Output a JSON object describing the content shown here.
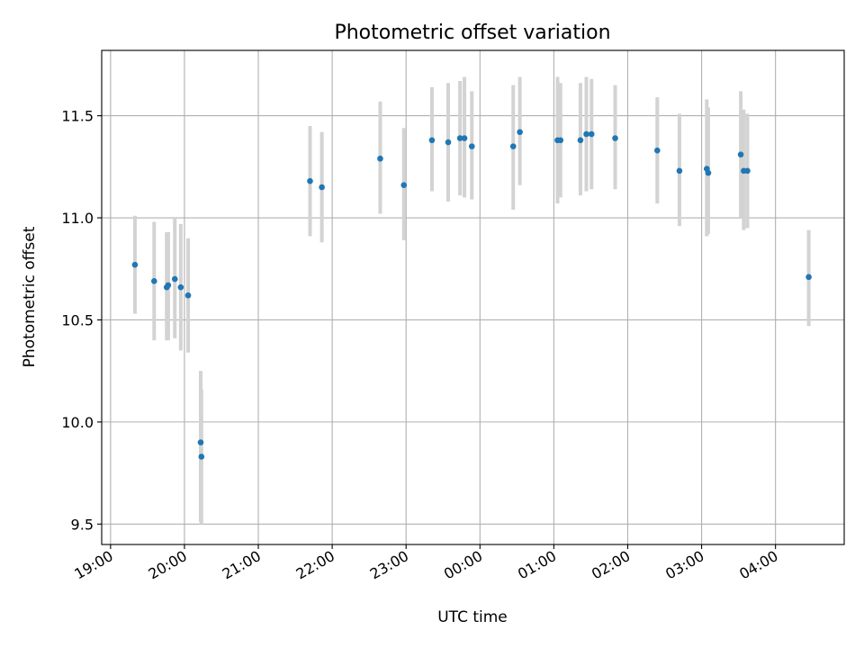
{
  "chart_data": {
    "type": "scatter",
    "title": "Photometric offset variation",
    "xlabel": "UTC time",
    "ylabel": "Photometric offset",
    "x_unit": "hours",
    "xlim": [
      18.88,
      28.93
    ],
    "ylim": [
      9.4,
      11.82
    ],
    "x_ticks": [
      {
        "value": 19,
        "label": "19:00"
      },
      {
        "value": 20,
        "label": "20:00"
      },
      {
        "value": 21,
        "label": "21:00"
      },
      {
        "value": 22,
        "label": "22:00"
      },
      {
        "value": 23,
        "label": "23:00"
      },
      {
        "value": 24,
        "label": "00:00"
      },
      {
        "value": 25,
        "label": "01:00"
      },
      {
        "value": 26,
        "label": "02:00"
      },
      {
        "value": 27,
        "label": "03:00"
      },
      {
        "value": 28,
        "label": "04:00"
      }
    ],
    "y_ticks": [
      {
        "value": 9.5,
        "label": "9.5"
      },
      {
        "value": 10.0,
        "label": "10.0"
      },
      {
        "value": 10.5,
        "label": "10.5"
      },
      {
        "value": 11.0,
        "label": "11.0"
      },
      {
        "value": 11.5,
        "label": "11.5"
      }
    ],
    "grid": true,
    "marker_color": "#1f77b4",
    "errorbar_color": "#d3d3d3",
    "points": [
      {
        "x": 19.33,
        "y": 10.77,
        "ylo": 10.53,
        "yhi": 11.01
      },
      {
        "x": 19.59,
        "y": 10.69,
        "ylo": 10.4,
        "yhi": 10.98
      },
      {
        "x": 19.76,
        "y": 10.66,
        "ylo": 10.4,
        "yhi": 10.93
      },
      {
        "x": 19.78,
        "y": 10.67,
        "ylo": 10.4,
        "yhi": 10.93
      },
      {
        "x": 19.87,
        "y": 10.7,
        "ylo": 10.41,
        "yhi": 11.0
      },
      {
        "x": 19.95,
        "y": 10.66,
        "ylo": 10.35,
        "yhi": 10.97
      },
      {
        "x": 20.05,
        "y": 10.62,
        "ylo": 10.34,
        "yhi": 10.9
      },
      {
        "x": 20.22,
        "y": 9.9,
        "ylo": 9.51,
        "yhi": 10.25
      },
      {
        "x": 20.23,
        "y": 9.83,
        "ylo": 9.5,
        "yhi": 10.16
      },
      {
        "x": 21.7,
        "y": 11.18,
        "ylo": 10.91,
        "yhi": 11.45
      },
      {
        "x": 21.86,
        "y": 11.15,
        "ylo": 10.88,
        "yhi": 11.42
      },
      {
        "x": 22.65,
        "y": 11.29,
        "ylo": 11.02,
        "yhi": 11.57
      },
      {
        "x": 22.97,
        "y": 11.16,
        "ylo": 10.89,
        "yhi": 11.44
      },
      {
        "x": 23.35,
        "y": 11.38,
        "ylo": 11.13,
        "yhi": 11.64
      },
      {
        "x": 23.57,
        "y": 11.37,
        "ylo": 11.08,
        "yhi": 11.66
      },
      {
        "x": 23.73,
        "y": 11.39,
        "ylo": 11.11,
        "yhi": 11.67
      },
      {
        "x": 23.79,
        "y": 11.39,
        "ylo": 11.1,
        "yhi": 11.69
      },
      {
        "x": 23.89,
        "y": 11.35,
        "ylo": 11.09,
        "yhi": 11.62
      },
      {
        "x": 24.45,
        "y": 11.35,
        "ylo": 11.04,
        "yhi": 11.65
      },
      {
        "x": 24.54,
        "y": 11.42,
        "ylo": 11.16,
        "yhi": 11.69
      },
      {
        "x": 25.05,
        "y": 11.38,
        "ylo": 11.07,
        "yhi": 11.69
      },
      {
        "x": 25.09,
        "y": 11.38,
        "ylo": 11.1,
        "yhi": 11.66
      },
      {
        "x": 25.36,
        "y": 11.38,
        "ylo": 11.11,
        "yhi": 11.66
      },
      {
        "x": 25.44,
        "y": 11.41,
        "ylo": 11.13,
        "yhi": 11.69
      },
      {
        "x": 25.51,
        "y": 11.41,
        "ylo": 11.14,
        "yhi": 11.68
      },
      {
        "x": 25.83,
        "y": 11.39,
        "ylo": 11.14,
        "yhi": 11.65
      },
      {
        "x": 26.4,
        "y": 11.33,
        "ylo": 11.07,
        "yhi": 11.59
      },
      {
        "x": 26.7,
        "y": 11.23,
        "ylo": 10.96,
        "yhi": 11.51
      },
      {
        "x": 27.07,
        "y": 11.24,
        "ylo": 10.91,
        "yhi": 11.58
      },
      {
        "x": 27.09,
        "y": 11.22,
        "ylo": 10.92,
        "yhi": 11.54
      },
      {
        "x": 27.53,
        "y": 11.31,
        "ylo": 11.0,
        "yhi": 11.62
      },
      {
        "x": 27.57,
        "y": 11.23,
        "ylo": 10.94,
        "yhi": 11.53
      },
      {
        "x": 27.62,
        "y": 11.23,
        "ylo": 10.95,
        "yhi": 11.51
      },
      {
        "x": 28.45,
        "y": 10.71,
        "ylo": 10.47,
        "yhi": 10.94
      }
    ]
  }
}
